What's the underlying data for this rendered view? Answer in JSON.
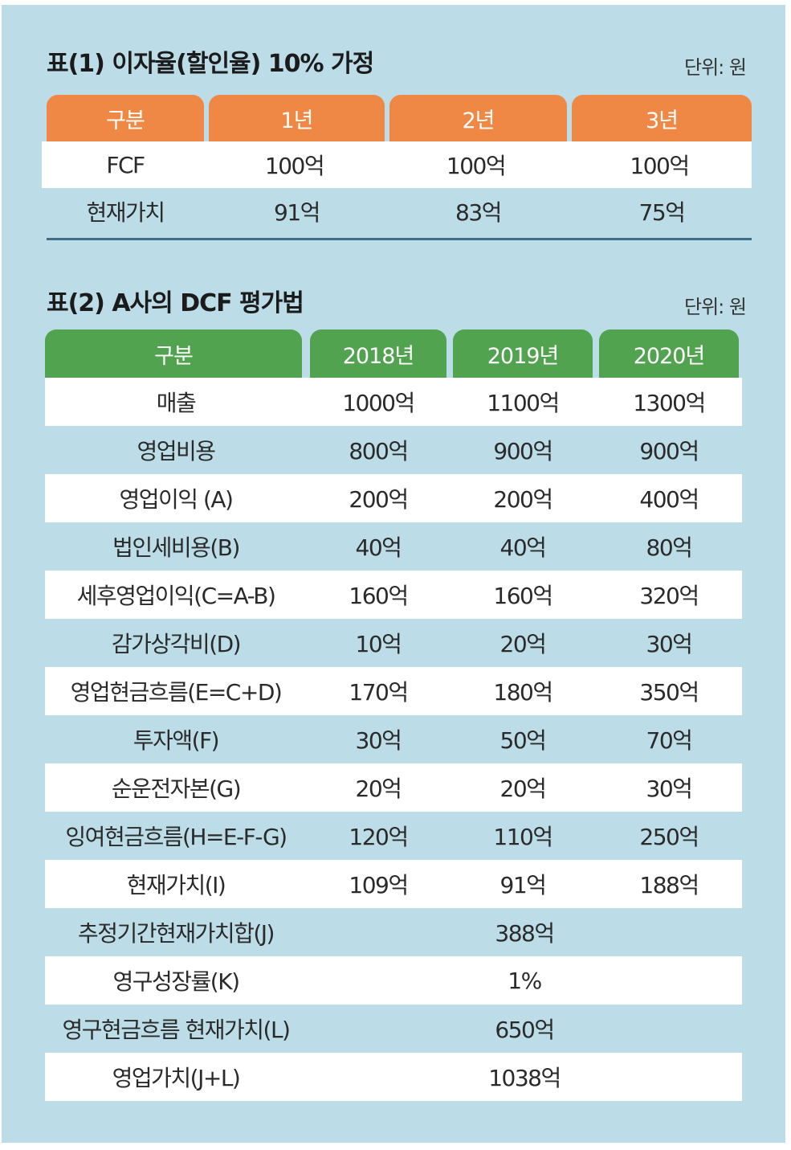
{
  "table1": {
    "title": "표(1) 이자율(할인율) 10% 가정",
    "unit": "단위: 원",
    "headers": [
      "구분",
      "1년",
      "2년",
      "3년"
    ],
    "rows": [
      [
        "FCF",
        "100억",
        "100억",
        "100억"
      ],
      [
        "현재가치",
        "91억",
        "83억",
        "75억"
      ]
    ],
    "colors": {
      "header": "#f08845",
      "rule": "#3f6f86"
    }
  },
  "table2": {
    "title": "표(2) A사의 DCF 평가법",
    "unit": "단위: 원",
    "headers": [
      "구분",
      "2018년",
      "2019년",
      "2020년"
    ],
    "rows": [
      [
        "매출",
        "1000억",
        "1100억",
        "1300억"
      ],
      [
        "영업비용",
        "800억",
        "900억",
        "900억"
      ],
      [
        "영업이익 (A)",
        "200억",
        "200억",
        "400억"
      ],
      [
        "법인세비용(B)",
        "40억",
        "40억",
        "80억"
      ],
      [
        "세후영업이익(C=A-B)",
        "160억",
        "160억",
        "320억"
      ],
      [
        "감가상각비(D)",
        "10억",
        "20억",
        "30억"
      ],
      [
        "영업현금흐름(E=C+D)",
        "170억",
        "180억",
        "350억"
      ],
      [
        "투자액(F)",
        "30억",
        "50억",
        "70억"
      ],
      [
        "순운전자본(G)",
        "20억",
        "20억",
        "30억"
      ],
      [
        "잉여현금흐름(H=E-F-G)",
        "120억",
        "110억",
        "250억"
      ],
      [
        "현재가치(I)",
        "109억",
        "91억",
        "188억"
      ]
    ],
    "summary": [
      [
        "추정기간현재가치합(J)",
        "388억"
      ],
      [
        "영구성장률(K)",
        "1%"
      ],
      [
        "영구현금흐름 현재가치(L)",
        "650억"
      ],
      [
        "영업가치(J+L)",
        "1038억"
      ]
    ],
    "colors": {
      "header": "#52a34f",
      "background": "#bcdde8"
    }
  }
}
